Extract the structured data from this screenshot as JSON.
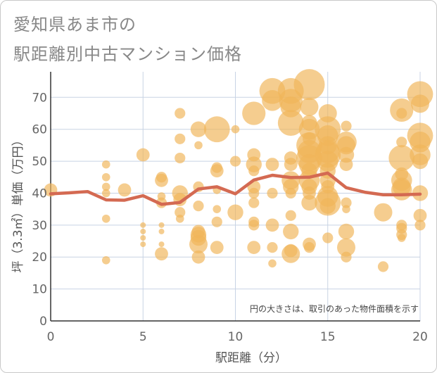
{
  "title_line1": "愛知県あま市の",
  "title_line2": "駅距離別中古マンション価格",
  "chart_data": {
    "type": "scatter",
    "xlabel": "駅距離（分）",
    "ylabel": "坪（3.3㎡）単価（万円）",
    "xlim": [
      0,
      20
    ],
    "ylim": [
      0,
      78
    ],
    "xticks": [
      0,
      5,
      10,
      15,
      20
    ],
    "yticks": [
      0,
      10,
      20,
      30,
      40,
      50,
      60,
      70
    ],
    "grid": true,
    "note": "円の大きさは、取引のあった物件面積を示す",
    "bubble_color": "#f0b65a",
    "line_color": "#d46a52",
    "series": [
      {
        "type": "line",
        "x": [
          0,
          1,
          2,
          3,
          4,
          5,
          6,
          7,
          8,
          9,
          10,
          11,
          12,
          13,
          14,
          15,
          16,
          17,
          18,
          19,
          20
        ],
        "y": [
          39.8,
          40.1,
          40.5,
          37.9,
          37.8,
          39.2,
          36.5,
          37.1,
          41.3,
          42.0,
          39.8,
          44.1,
          45.6,
          44.9,
          45.0,
          46.3,
          41.7,
          40.3,
          39.5,
          39.5,
          39.7
        ]
      },
      {
        "type": "bubble",
        "points": [
          {
            "x": 0,
            "y": 41,
            "s": 4
          },
          {
            "x": 3,
            "y": 49,
            "s": 2
          },
          {
            "x": 3,
            "y": 45,
            "s": 2
          },
          {
            "x": 3,
            "y": 42,
            "s": 2
          },
          {
            "x": 3,
            "y": 40,
            "s": 2
          },
          {
            "x": 3,
            "y": 32,
            "s": 2
          },
          {
            "x": 3,
            "y": 19,
            "s": 2
          },
          {
            "x": 4,
            "y": 41,
            "s": 4
          },
          {
            "x": 5,
            "y": 52,
            "s": 4
          },
          {
            "x": 5,
            "y": 30,
            "s": 1
          },
          {
            "x": 5,
            "y": 28,
            "s": 1
          },
          {
            "x": 5,
            "y": 26,
            "s": 1
          },
          {
            "x": 5,
            "y": 24,
            "s": 1
          },
          {
            "x": 6,
            "y": 45,
            "s": 3
          },
          {
            "x": 6,
            "y": 44,
            "s": 4
          },
          {
            "x": 6,
            "y": 39,
            "s": 2
          },
          {
            "x": 6,
            "y": 37,
            "s": 3
          },
          {
            "x": 6,
            "y": 30,
            "s": 1
          },
          {
            "x": 6,
            "y": 28,
            "s": 1
          },
          {
            "x": 6,
            "y": 24,
            "s": 1
          },
          {
            "x": 6,
            "y": 21,
            "s": 4
          },
          {
            "x": 7,
            "y": 65,
            "s": 3
          },
          {
            "x": 7,
            "y": 57,
            "s": 3
          },
          {
            "x": 7,
            "y": 51,
            "s": 3
          },
          {
            "x": 7,
            "y": 40,
            "s": 5
          },
          {
            "x": 7,
            "y": 38,
            "s": 4
          },
          {
            "x": 7,
            "y": 34,
            "s": 3
          },
          {
            "x": 7,
            "y": 32,
            "s": 2
          },
          {
            "x": 8,
            "y": 60,
            "s": 5
          },
          {
            "x": 8,
            "y": 55,
            "s": 2
          },
          {
            "x": 8,
            "y": 42,
            "s": 3
          },
          {
            "x": 8,
            "y": 36,
            "s": 3
          },
          {
            "x": 8,
            "y": 28,
            "s": 4
          },
          {
            "x": 8,
            "y": 27,
            "s": 5
          },
          {
            "x": 8,
            "y": 26,
            "s": 5
          },
          {
            "x": 8,
            "y": 24,
            "s": 6
          },
          {
            "x": 8,
            "y": 20,
            "s": 4
          },
          {
            "x": 9,
            "y": 60,
            "s": 9
          },
          {
            "x": 9,
            "y": 48,
            "s": 3
          },
          {
            "x": 9,
            "y": 47,
            "s": 4
          },
          {
            "x": 9,
            "y": 41,
            "s": 2
          },
          {
            "x": 9,
            "y": 35,
            "s": 2
          },
          {
            "x": 9,
            "y": 31,
            "s": 3
          },
          {
            "x": 9,
            "y": 23,
            "s": 4
          },
          {
            "x": 10,
            "y": 60,
            "s": 2
          },
          {
            "x": 10,
            "y": 50,
            "s": 3
          },
          {
            "x": 10,
            "y": 34,
            "s": 5
          },
          {
            "x": 11,
            "y": 65,
            "s": 8
          },
          {
            "x": 11,
            "y": 52,
            "s": 4
          },
          {
            "x": 11,
            "y": 49,
            "s": 5
          },
          {
            "x": 11,
            "y": 47,
            "s": 3
          },
          {
            "x": 11,
            "y": 42,
            "s": 4
          },
          {
            "x": 11,
            "y": 40,
            "s": 3
          },
          {
            "x": 11,
            "y": 37,
            "s": 3
          },
          {
            "x": 11,
            "y": 31,
            "s": 3
          },
          {
            "x": 11,
            "y": 30,
            "s": 3
          },
          {
            "x": 11,
            "y": 23,
            "s": 4
          },
          {
            "x": 12,
            "y": 72,
            "s": 9
          },
          {
            "x": 12,
            "y": 69,
            "s": 7
          },
          {
            "x": 12,
            "y": 49,
            "s": 4
          },
          {
            "x": 12,
            "y": 40,
            "s": 3
          },
          {
            "x": 12,
            "y": 30,
            "s": 4
          },
          {
            "x": 12,
            "y": 23,
            "s": 3
          },
          {
            "x": 12,
            "y": 18,
            "s": 2
          },
          {
            "x": 13,
            "y": 72,
            "s": 9
          },
          {
            "x": 13,
            "y": 69,
            "s": 8
          },
          {
            "x": 13,
            "y": 67,
            "s": 7
          },
          {
            "x": 13,
            "y": 62,
            "s": 9
          },
          {
            "x": 13,
            "y": 51,
            "s": 4
          },
          {
            "x": 13,
            "y": 49,
            "s": 4
          },
          {
            "x": 13,
            "y": 44,
            "s": 6
          },
          {
            "x": 13,
            "y": 42,
            "s": 5
          },
          {
            "x": 13,
            "y": 40,
            "s": 3
          },
          {
            "x": 13,
            "y": 33,
            "s": 3
          },
          {
            "x": 13,
            "y": 28,
            "s": 5
          },
          {
            "x": 13,
            "y": 22,
            "s": 4
          },
          {
            "x": 13,
            "y": 21,
            "s": 6
          },
          {
            "x": 14,
            "y": 74,
            "s": 11
          },
          {
            "x": 14,
            "y": 67,
            "s": 6
          },
          {
            "x": 14,
            "y": 62,
            "s": 5
          },
          {
            "x": 14,
            "y": 60,
            "s": 7
          },
          {
            "x": 14,
            "y": 57,
            "s": 4
          },
          {
            "x": 14,
            "y": 55,
            "s": 9
          },
          {
            "x": 14,
            "y": 53,
            "s": 8
          },
          {
            "x": 14,
            "y": 51,
            "s": 9
          },
          {
            "x": 14,
            "y": 49,
            "s": 7
          },
          {
            "x": 14,
            "y": 47,
            "s": 5
          },
          {
            "x": 14,
            "y": 44,
            "s": 7
          },
          {
            "x": 14,
            "y": 42,
            "s": 5
          },
          {
            "x": 14,
            "y": 40,
            "s": 4
          },
          {
            "x": 14,
            "y": 37,
            "s": 5
          },
          {
            "x": 14,
            "y": 24,
            "s": 4
          },
          {
            "x": 14,
            "y": 23,
            "s": 3
          },
          {
            "x": 15,
            "y": 65,
            "s": 6
          },
          {
            "x": 15,
            "y": 60,
            "s": 9
          },
          {
            "x": 15,
            "y": 58,
            "s": 7
          },
          {
            "x": 15,
            "y": 55,
            "s": 6
          },
          {
            "x": 15,
            "y": 53,
            "s": 8
          },
          {
            "x": 15,
            "y": 52,
            "s": 9
          },
          {
            "x": 15,
            "y": 50,
            "s": 7
          },
          {
            "x": 15,
            "y": 47,
            "s": 5
          },
          {
            "x": 15,
            "y": 44,
            "s": 5
          },
          {
            "x": 15,
            "y": 42,
            "s": 4
          },
          {
            "x": 15,
            "y": 39,
            "s": 7
          },
          {
            "x": 15,
            "y": 37,
            "s": 9
          },
          {
            "x": 15,
            "y": 36,
            "s": 5
          },
          {
            "x": 15,
            "y": 26,
            "s": 3
          },
          {
            "x": 16,
            "y": 61,
            "s": 3
          },
          {
            "x": 16,
            "y": 56,
            "s": 7
          },
          {
            "x": 16,
            "y": 55,
            "s": 6
          },
          {
            "x": 16,
            "y": 52,
            "s": 5
          },
          {
            "x": 16,
            "y": 49,
            "s": 4
          },
          {
            "x": 16,
            "y": 37,
            "s": 3
          },
          {
            "x": 16,
            "y": 35,
            "s": 2
          },
          {
            "x": 16,
            "y": 28,
            "s": 5
          },
          {
            "x": 16,
            "y": 23,
            "s": 6
          },
          {
            "x": 16,
            "y": 20,
            "s": 3
          },
          {
            "x": 18,
            "y": 34,
            "s": 6
          },
          {
            "x": 18,
            "y": 17,
            "s": 3
          },
          {
            "x": 19,
            "y": 66,
            "s": 8
          },
          {
            "x": 19,
            "y": 65,
            "s": 3
          },
          {
            "x": 19,
            "y": 56,
            "s": 3
          },
          {
            "x": 19,
            "y": 51,
            "s": 9
          },
          {
            "x": 19,
            "y": 46,
            "s": 4
          },
          {
            "x": 19,
            "y": 44,
            "s": 7
          },
          {
            "x": 19,
            "y": 42,
            "s": 6
          },
          {
            "x": 19,
            "y": 41,
            "s": 7
          },
          {
            "x": 19,
            "y": 30,
            "s": 3
          },
          {
            "x": 19,
            "y": 29,
            "s": 3
          },
          {
            "x": 19,
            "y": 27,
            "s": 3
          },
          {
            "x": 19,
            "y": 26,
            "s": 2
          },
          {
            "x": 20,
            "y": 71,
            "s": 9
          },
          {
            "x": 20,
            "y": 68,
            "s": 6
          },
          {
            "x": 20,
            "y": 58,
            "s": 9
          },
          {
            "x": 20,
            "y": 56,
            "s": 7
          },
          {
            "x": 20,
            "y": 52,
            "s": 7
          },
          {
            "x": 20,
            "y": 50,
            "s": 5
          },
          {
            "x": 20,
            "y": 40,
            "s": 5
          },
          {
            "x": 20,
            "y": 33,
            "s": 4
          },
          {
            "x": 20,
            "y": 30,
            "s": 3
          }
        ]
      }
    ]
  }
}
